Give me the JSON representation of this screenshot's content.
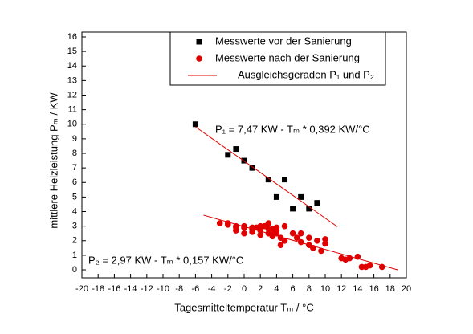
{
  "chart_data": {
    "type": "scatter",
    "xlabel": "Tagesmitteltemperatur  Tₘ / °C",
    "ylabel": "mittlere Heizleistung   Pₘ / KW",
    "annotations": [
      "P₁ = 7,47 KW - Tₘ * 0,392 KW/°C",
      "P₂ = 2,97 KW - Tₘ * 0,157 KW/°C"
    ],
    "xlim": [
      -20,
      20
    ],
    "ylim": [
      -0.55,
      16.33
    ],
    "xticks": [
      -20,
      -18,
      -16,
      -14,
      -12,
      -10,
      -8,
      -6,
      -4,
      -2,
      0,
      2,
      4,
      6,
      8,
      10,
      12,
      14,
      16,
      18,
      20
    ],
    "yticks": [
      0,
      1,
      2,
      3,
      4,
      5,
      6,
      7,
      8,
      9,
      10,
      11,
      12,
      13,
      14,
      15,
      16
    ],
    "legend": "upper right",
    "series": [
      {
        "name": "Messwerte vor der Sanierung",
        "color": "#000000",
        "marker": "square",
        "x": [
          -6,
          -2,
          -1,
          0,
          1,
          3,
          4,
          5,
          6,
          7,
          8,
          9
        ],
        "values": [
          10,
          7.9,
          8.3,
          7.5,
          7,
          6.2,
          5,
          6.2,
          4.2,
          5,
          4.2,
          4.6
        ]
      },
      {
        "name": "Messwerte nach der Sanierung",
        "color": "#e00000",
        "marker": "circle",
        "x": [
          -3,
          -2,
          -2,
          -1,
          -1,
          0,
          0,
          0,
          1,
          1,
          1.5,
          2,
          2,
          2.5,
          3,
          3,
          3,
          3.5,
          3.5,
          4,
          4,
          4.5,
          4.5,
          5,
          5,
          6,
          6.5,
          7,
          7,
          8,
          8,
          8.5,
          9,
          9.5,
          10,
          10,
          12,
          12.5,
          13,
          14,
          14.5,
          15,
          15.5,
          17,
          -1,
          1,
          2,
          3.5,
          4
        ],
        "values": [
          3.2,
          3.2,
          3.1,
          2.9,
          2.7,
          2.9,
          2.5,
          3.0,
          2.8,
          2.6,
          2.9,
          2.7,
          2.4,
          3.0,
          2.8,
          2.5,
          3.2,
          2.6,
          2.3,
          2.9,
          2.5,
          2.2,
          1.7,
          2.0,
          3.0,
          2.5,
          2.2,
          2.5,
          1.9,
          2.2,
          1.7,
          1.5,
          2.0,
          1.3,
          1.8,
          2.1,
          0.8,
          0.7,
          0.8,
          0.9,
          0.2,
          0.2,
          0.3,
          0.2,
          3.0,
          2.9,
          3.0,
          2.8,
          2.7
        ]
      },
      {
        "name": "Ausgleichsgeraden P₁ und P₂",
        "color": "#e00000",
        "marker": "line",
        "x": [
          -6,
          11.5,
          null,
          -5,
          19
        ],
        "values": [
          9.82,
          2.96,
          null,
          3.755,
          -0.013
        ]
      }
    ]
  }
}
